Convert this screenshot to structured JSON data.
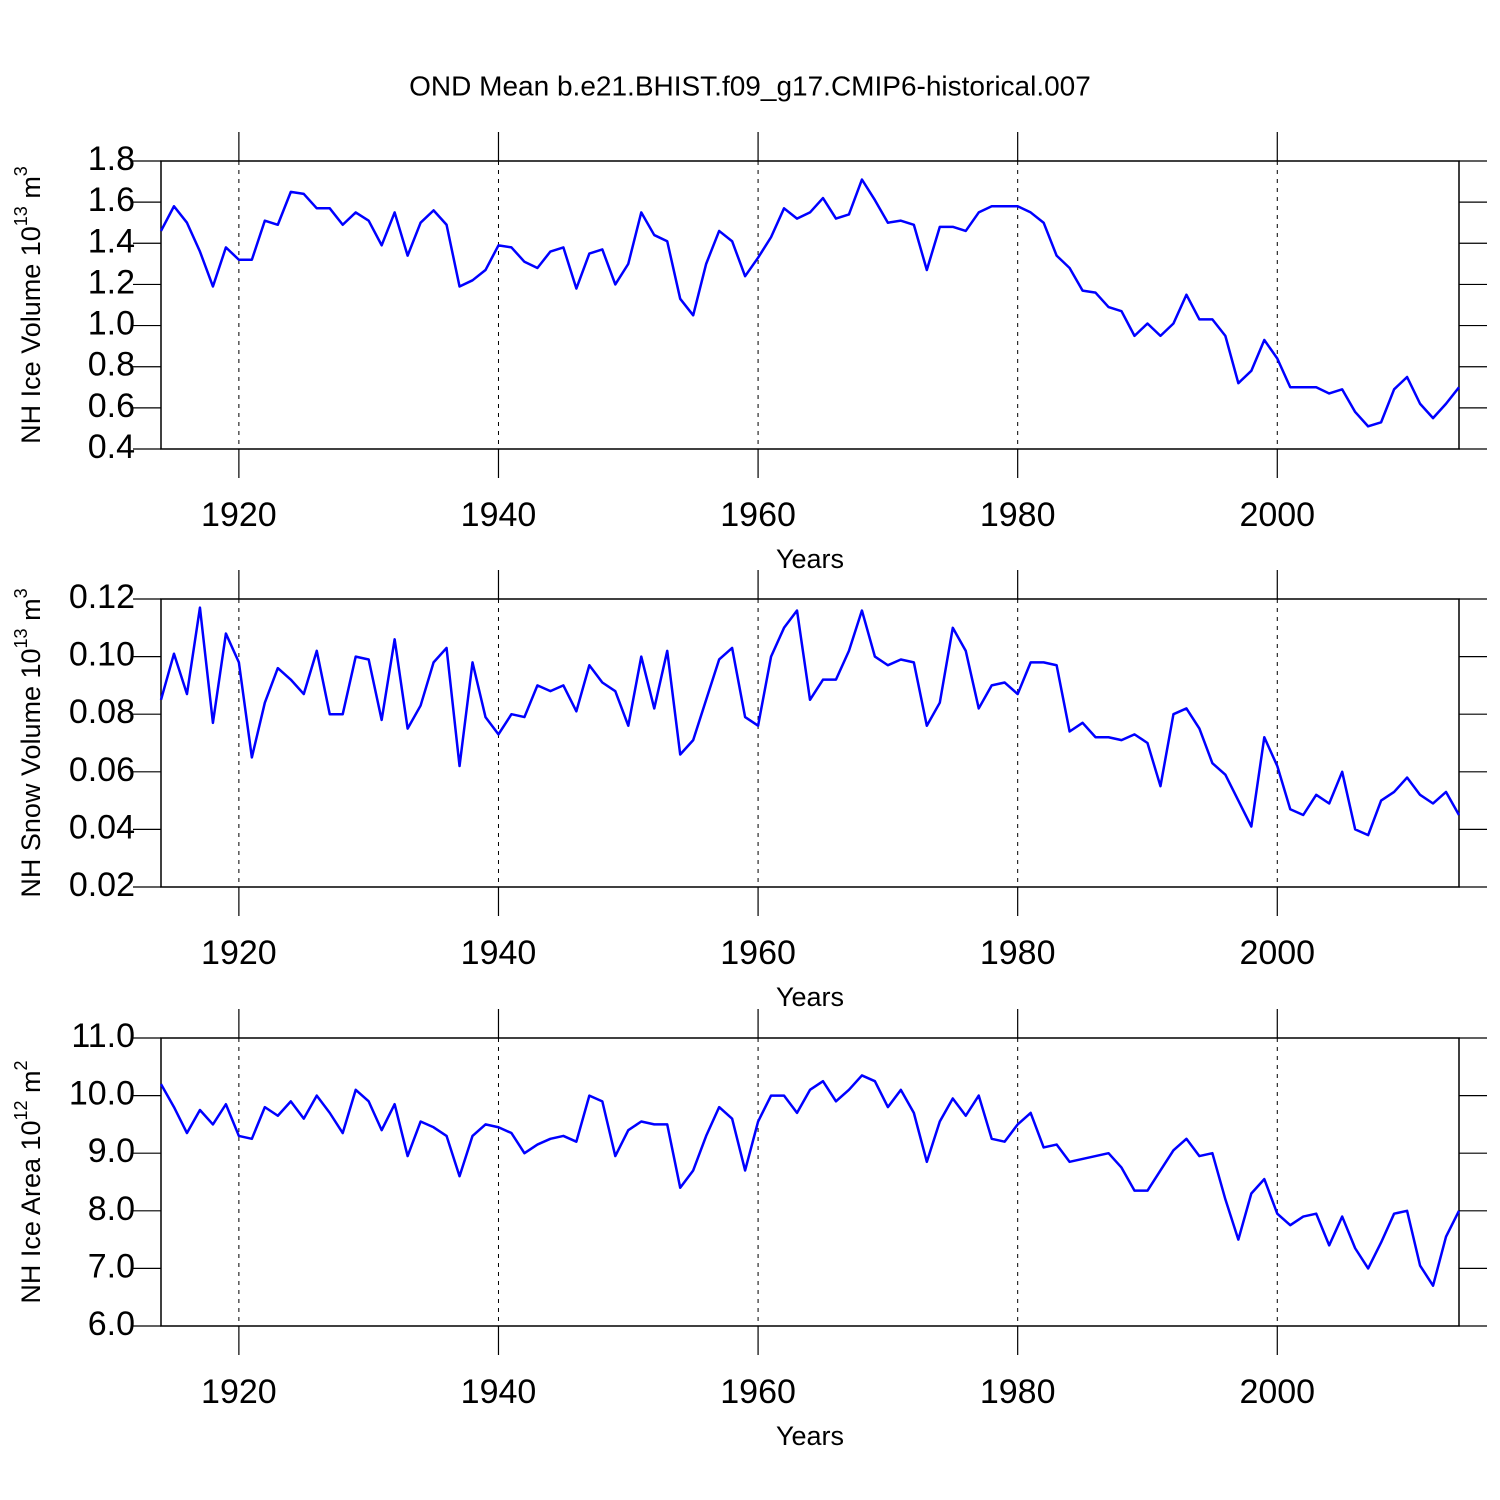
{
  "title": "OND Mean b.e21.BHIST.f09_g17.CMIP6-historical.007",
  "chart_data": [
    {
      "type": "line",
      "xlabel": "Years",
      "ylabel": [
        "NH Ice Volume 10",
        "13",
        " m",
        "3"
      ],
      "x": [
        1914,
        1915,
        1916,
        1917,
        1918,
        1919,
        1920,
        1921,
        1922,
        1923,
        1924,
        1925,
        1926,
        1927,
        1928,
        1929,
        1930,
        1931,
        1932,
        1933,
        1934,
        1935,
        1936,
        1937,
        1938,
        1939,
        1940,
        1941,
        1942,
        1943,
        1944,
        1945,
        1946,
        1947,
        1948,
        1949,
        1950,
        1951,
        1952,
        1953,
        1954,
        1955,
        1956,
        1957,
        1958,
        1959,
        1960,
        1961,
        1962,
        1963,
        1964,
        1965,
        1966,
        1967,
        1968,
        1969,
        1970,
        1971,
        1972,
        1973,
        1974,
        1975,
        1976,
        1977,
        1978,
        1979,
        1980,
        1981,
        1982,
        1983,
        1984,
        1985,
        1986,
        1987,
        1988,
        1989,
        1990,
        1991,
        1992,
        1993,
        1994,
        1995,
        1996,
        1997,
        1998,
        1999,
        2000,
        2001,
        2002,
        2003,
        2004,
        2005,
        2006,
        2007,
        2008,
        2009,
        2010,
        2011,
        2012,
        2013,
        2014
      ],
      "series": [
        {
          "color": "#0000ff",
          "values": [
            1.46,
            1.58,
            1.5,
            1.36,
            1.19,
            1.38,
            1.32,
            1.32,
            1.51,
            1.49,
            1.65,
            1.64,
            1.57,
            1.57,
            1.49,
            1.55,
            1.51,
            1.39,
            1.55,
            1.34,
            1.5,
            1.56,
            1.49,
            1.19,
            1.22,
            1.27,
            1.39,
            1.38,
            1.31,
            1.28,
            1.36,
            1.38,
            1.18,
            1.35,
            1.37,
            1.2,
            1.3,
            1.55,
            1.44,
            1.41,
            1.13,
            1.05,
            1.3,
            1.46,
            1.41,
            1.24,
            1.33,
            1.43,
            1.57,
            1.52,
            1.55,
            1.62,
            1.52,
            1.54,
            1.71,
            1.61,
            1.5,
            1.51,
            1.49,
            1.27,
            1.48,
            1.48,
            1.46,
            1.55,
            1.58,
            1.58,
            1.58,
            1.55,
            1.5,
            1.34,
            1.28,
            1.17,
            1.16,
            1.09,
            1.07,
            0.95,
            1.01,
            0.95,
            1.01,
            1.15,
            1.03,
            1.03,
            0.95,
            0.72,
            0.78,
            0.93,
            0.84,
            0.7,
            0.7,
            0.7,
            0.67,
            0.69,
            0.58,
            0.51,
            0.53,
            0.69,
            0.75,
            0.62,
            0.55,
            0.62,
            0.7
          ]
        }
      ],
      "xlim": [
        1914,
        2014
      ],
      "xticks": [
        1920,
        1940,
        1960,
        1980,
        2000
      ],
      "ylim": [
        0.4,
        1.8
      ],
      "yticks": [
        0.4,
        0.6,
        0.8,
        {
          "value": 1,
          "label": "1.0"
        },
        1.2,
        1.4,
        1.6,
        1.8
      ],
      "grid": "x"
    },
    {
      "type": "line",
      "xlabel": "Years",
      "ylabel": [
        "NH Snow Volume 10",
        "13",
        " m",
        "3"
      ],
      "x": [
        1914,
        1915,
        1916,
        1917,
        1918,
        1919,
        1920,
        1921,
        1922,
        1923,
        1924,
        1925,
        1926,
        1927,
        1928,
        1929,
        1930,
        1931,
        1932,
        1933,
        1934,
        1935,
        1936,
        1937,
        1938,
        1939,
        1940,
        1941,
        1942,
        1943,
        1944,
        1945,
        1946,
        1947,
        1948,
        1949,
        1950,
        1951,
        1952,
        1953,
        1954,
        1955,
        1956,
        1957,
        1958,
        1959,
        1960,
        1961,
        1962,
        1963,
        1964,
        1965,
        1966,
        1967,
        1968,
        1969,
        1970,
        1971,
        1972,
        1973,
        1974,
        1975,
        1976,
        1977,
        1978,
        1979,
        1980,
        1981,
        1982,
        1983,
        1984,
        1985,
        1986,
        1987,
        1988,
        1989,
        1990,
        1991,
        1992,
        1993,
        1994,
        1995,
        1996,
        1997,
        1998,
        1999,
        2000,
        2001,
        2002,
        2003,
        2004,
        2005,
        2006,
        2007,
        2008,
        2009,
        2010,
        2011,
        2012,
        2013,
        2014
      ],
      "series": [
        {
          "color": "#0000ff",
          "values": [
            0.085,
            0.101,
            0.087,
            0.117,
            0.077,
            0.108,
            0.098,
            0.065,
            0.084,
            0.096,
            0.092,
            0.087,
            0.102,
            0.08,
            0.08,
            0.1,
            0.099,
            0.078,
            0.106,
            0.075,
            0.083,
            0.098,
            0.103,
            0.062,
            0.098,
            0.079,
            0.073,
            0.08,
            0.079,
            0.09,
            0.088,
            0.09,
            0.081,
            0.097,
            0.091,
            0.088,
            0.076,
            0.1,
            0.082,
            0.102,
            0.066,
            0.071,
            0.085,
            0.099,
            0.103,
            0.079,
            0.076,
            0.1,
            0.11,
            0.116,
            0.085,
            0.092,
            0.092,
            0.102,
            0.116,
            0.1,
            0.097,
            0.099,
            0.098,
            0.076,
            0.084,
            0.11,
            0.102,
            0.082,
            0.09,
            0.091,
            0.087,
            0.098,
            0.098,
            0.097,
            0.074,
            0.077,
            0.072,
            0.072,
            0.071,
            0.073,
            0.07,
            0.055,
            0.08,
            0.082,
            0.075,
            0.063,
            0.059,
            0.05,
            0.041,
            0.072,
            0.062,
            0.047,
            0.045,
            0.052,
            0.049,
            0.06,
            0.04,
            0.038,
            0.05,
            0.053,
            0.058,
            0.052,
            0.049,
            0.053,
            0.045
          ]
        }
      ],
      "xlim": [
        1914,
        2014
      ],
      "xticks": [
        1920,
        1940,
        1960,
        1980,
        2000
      ],
      "ylim": [
        0.02,
        0.12
      ],
      "yticks": [
        0.02,
        0.04,
        0.06,
        0.08,
        {
          "value": 0.1,
          "label": "0.10"
        },
        0.12
      ],
      "grid": "x"
    },
    {
      "type": "line",
      "xlabel": "Years",
      "ylabel": [
        "NH Ice Area 10",
        "12",
        " m",
        "2"
      ],
      "x": [
        1914,
        1915,
        1916,
        1917,
        1918,
        1919,
        1920,
        1921,
        1922,
        1923,
        1924,
        1925,
        1926,
        1927,
        1928,
        1929,
        1930,
        1931,
        1932,
        1933,
        1934,
        1935,
        1936,
        1937,
        1938,
        1939,
        1940,
        1941,
        1942,
        1943,
        1944,
        1945,
        1946,
        1947,
        1948,
        1949,
        1950,
        1951,
        1952,
        1953,
        1954,
        1955,
        1956,
        1957,
        1958,
        1959,
        1960,
        1961,
        1962,
        1963,
        1964,
        1965,
        1966,
        1967,
        1968,
        1969,
        1970,
        1971,
        1972,
        1973,
        1974,
        1975,
        1976,
        1977,
        1978,
        1979,
        1980,
        1981,
        1982,
        1983,
        1984,
        1985,
        1986,
        1987,
        1988,
        1989,
        1990,
        1991,
        1992,
        1993,
        1994,
        1995,
        1996,
        1997,
        1998,
        1999,
        2000,
        2001,
        2002,
        2003,
        2004,
        2005,
        2006,
        2007,
        2008,
        2009,
        2010,
        2011,
        2012,
        2013,
        2014
      ],
      "series": [
        {
          "color": "#0000ff",
          "values": [
            10.2,
            9.8,
            9.35,
            9.75,
            9.5,
            9.85,
            9.3,
            9.25,
            9.8,
            9.65,
            9.9,
            9.6,
            10.0,
            9.7,
            9.35,
            10.1,
            9.9,
            9.4,
            9.85,
            8.95,
            9.55,
            9.45,
            9.3,
            8.6,
            9.3,
            9.5,
            9.45,
            9.35,
            9.0,
            9.15,
            9.25,
            9.3,
            9.2,
            10.0,
            9.9,
            8.95,
            9.4,
            9.55,
            9.5,
            9.5,
            8.4,
            8.7,
            9.3,
            9.8,
            9.6,
            8.7,
            9.55,
            10.0,
            10.0,
            9.7,
            10.1,
            10.25,
            9.9,
            10.1,
            10.35,
            10.25,
            9.8,
            10.1,
            9.7,
            8.85,
            9.55,
            9.95,
            9.65,
            10.0,
            9.25,
            9.2,
            9.5,
            9.7,
            9.1,
            9.15,
            8.85,
            8.9,
            8.95,
            9.0,
            8.75,
            8.35,
            8.35,
            8.7,
            9.05,
            9.25,
            8.95,
            9.0,
            8.2,
            7.5,
            8.3,
            8.55,
            7.95,
            7.75,
            7.9,
            7.95,
            7.4,
            7.9,
            7.35,
            7.0,
            7.45,
            7.95,
            8.0,
            7.05,
            6.7,
            7.55,
            8.0
          ]
        }
      ],
      "xlim": [
        1914,
        2014
      ],
      "xticks": [
        1920,
        1940,
        1960,
        1980,
        2000
      ],
      "ylim": [
        6,
        11
      ],
      "yticks": [
        {
          "value": 6,
          "label": "6.0"
        },
        {
          "value": 7,
          "label": "7.0"
        },
        {
          "value": 8,
          "label": "8.0"
        },
        {
          "value": 9,
          "label": "9.0"
        },
        {
          "value": 10,
          "label": "10.0"
        },
        {
          "value": 11,
          "label": "11.0"
        }
      ],
      "grid": "x"
    }
  ]
}
